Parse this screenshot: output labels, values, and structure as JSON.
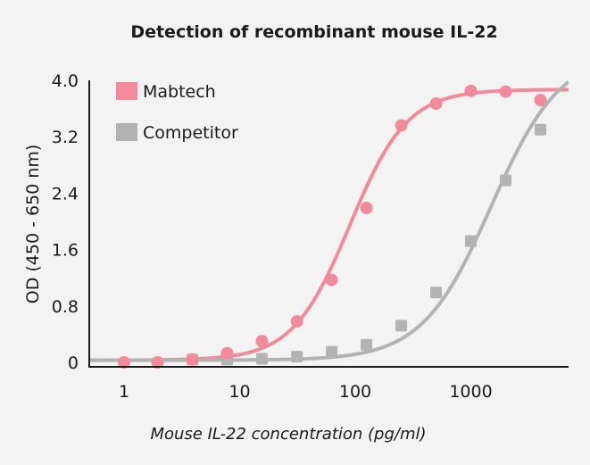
{
  "chart_data": {
    "type": "scatter",
    "title": "Detection of recombinant mouse IL-22",
    "xlabel": "Mouse IL-22 concentration (pg/ml)",
    "ylabel": "OD (450 - 650 nm)",
    "x_scale": "log",
    "xlim": [
      0.5,
      7000
    ],
    "ylim": [
      0,
      4.0
    ],
    "x_ticks": [
      1,
      10,
      100,
      1000
    ],
    "x_tick_labels": [
      "1",
      "10",
      "100",
      "1000"
    ],
    "y_ticks": [
      0,
      0.8,
      1.6,
      2.4,
      3.2,
      4.0
    ],
    "y_tick_labels": [
      "0",
      "0.8",
      "1.6",
      "2.4",
      "3.2",
      "4.0"
    ],
    "grid": false,
    "legend_position": "top-left",
    "series": [
      {
        "name": "Mabtech",
        "color": "#f28a9b",
        "marker": "circle",
        "x": [
          1,
          1.95,
          3.9,
          7.8,
          15.6,
          31.3,
          62.5,
          125,
          250,
          500,
          1000,
          2000,
          4000
        ],
        "y": [
          0.0,
          0.0,
          0.04,
          0.13,
          0.3,
          0.58,
          1.17,
          2.19,
          3.36,
          3.67,
          3.85,
          3.84,
          3.72
        ],
        "fit": {
          "bottom": 0.03,
          "top": 3.87,
          "ec50": 90,
          "hill": 1.75
        }
      },
      {
        "name": "Competitor",
        "color": "#b3b3b3",
        "marker": "square",
        "x": [
          3.9,
          7.8,
          15.6,
          31.3,
          62.5,
          125,
          250,
          500,
          1000,
          2000,
          4000
        ],
        "y": [
          0.04,
          0.04,
          0.05,
          0.08,
          0.15,
          0.25,
          0.52,
          0.99,
          1.72,
          2.58,
          3.3
        ],
        "fit": {
          "bottom": 0.03,
          "top": 4.4,
          "ec50": 1500,
          "hill": 1.45
        }
      }
    ]
  }
}
